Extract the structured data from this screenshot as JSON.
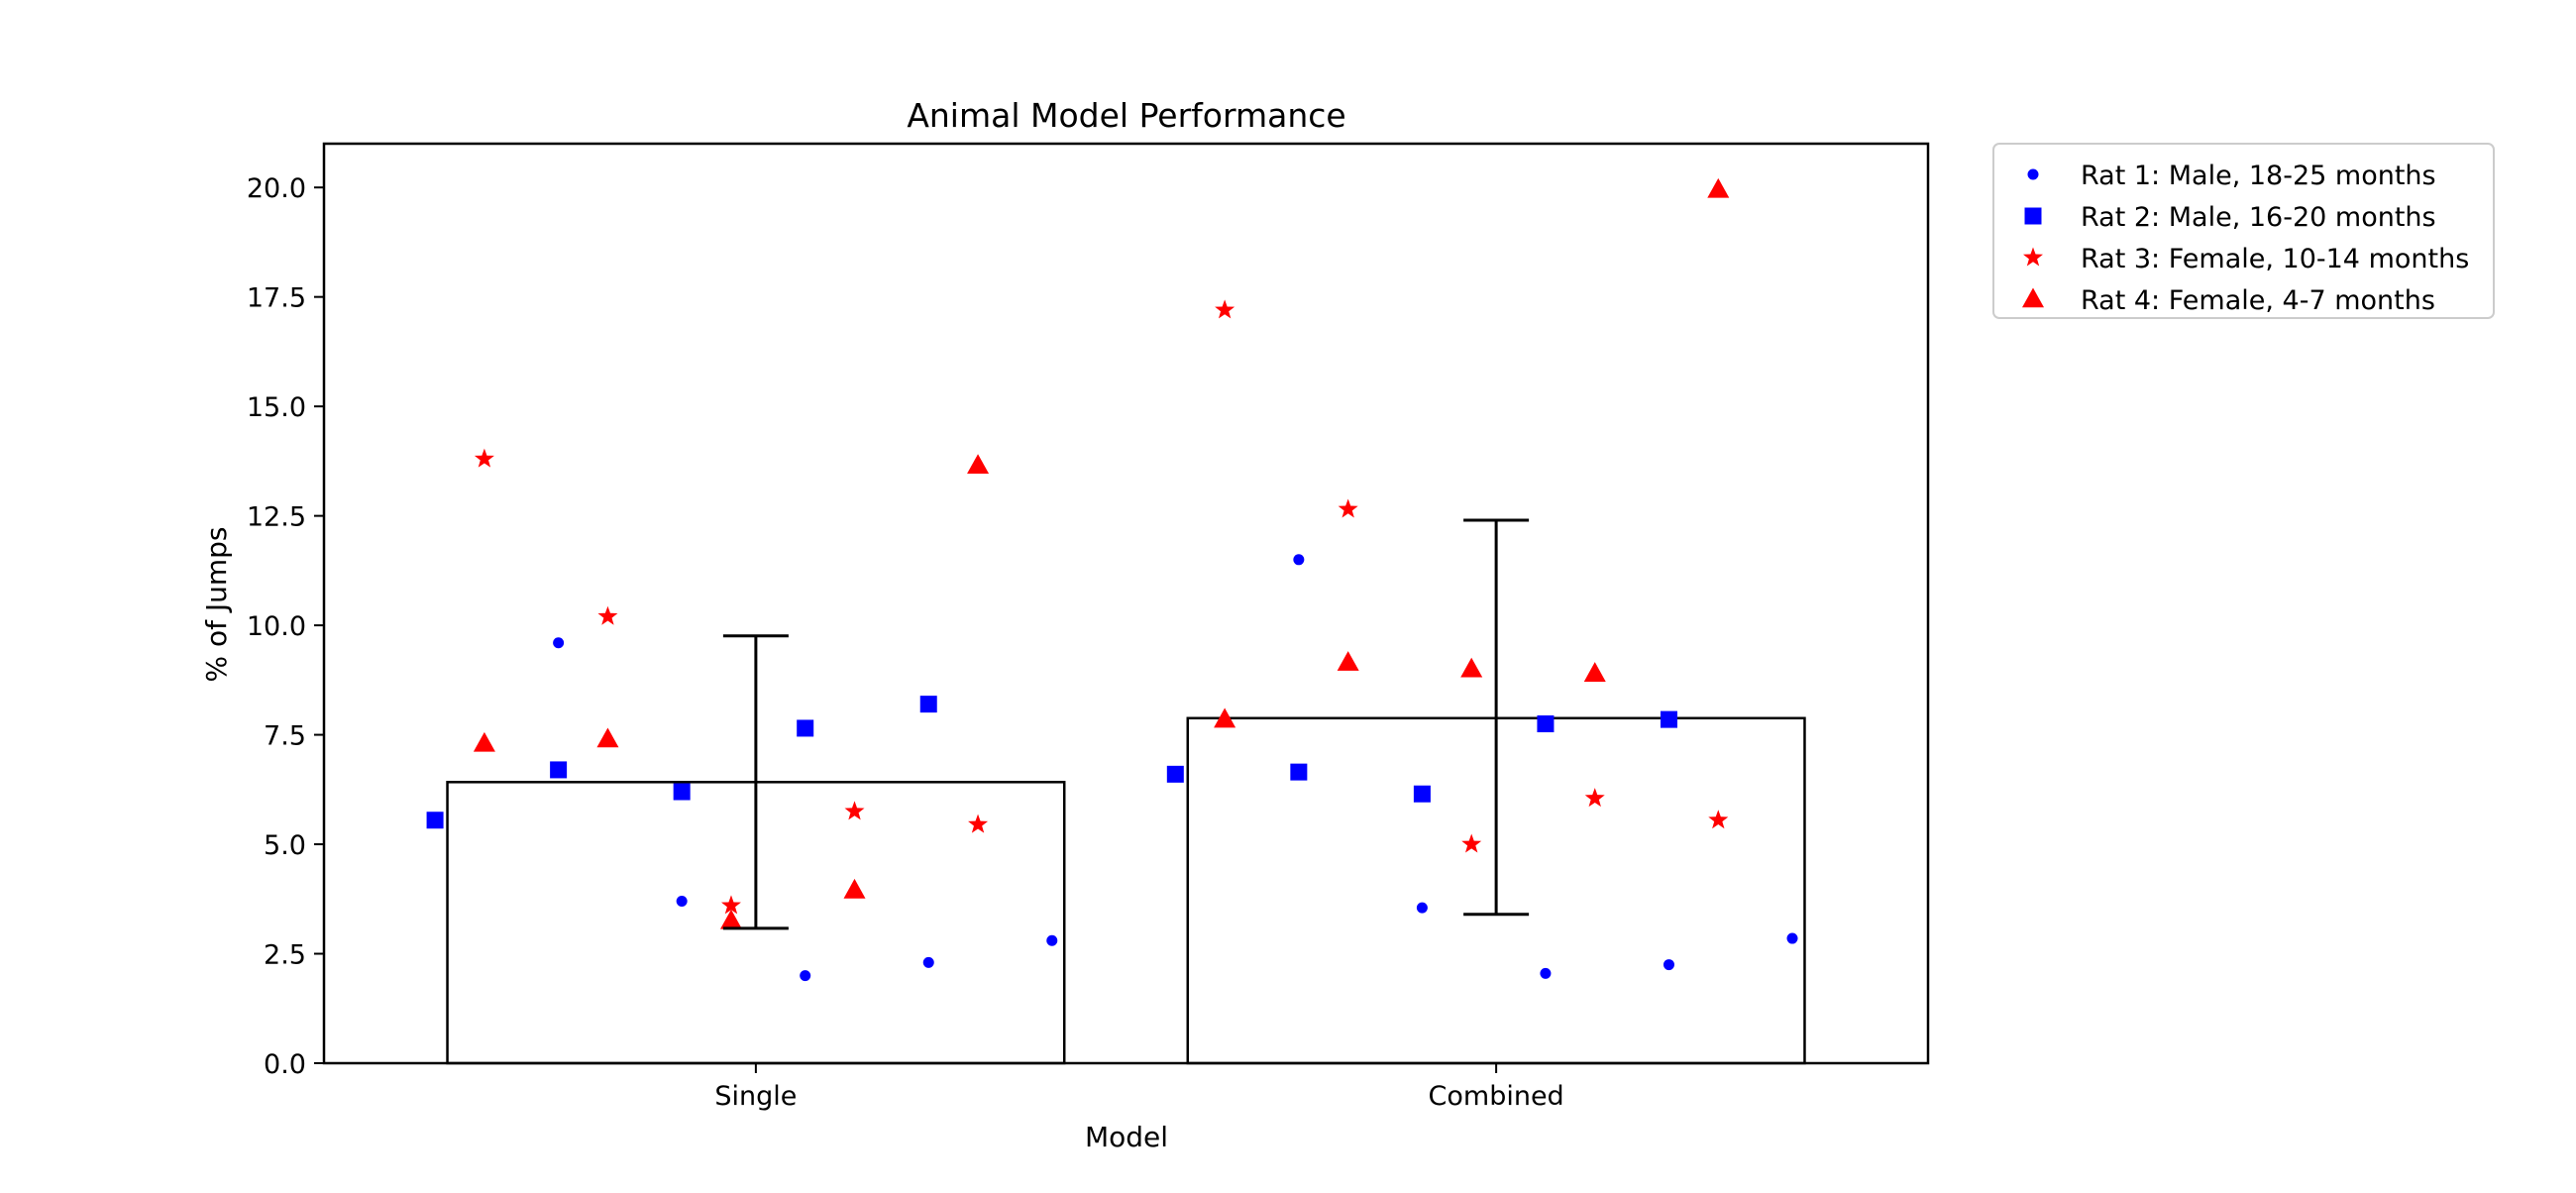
{
  "chart_data": {
    "type": "bar",
    "title": "Animal Model Performance",
    "xlabel": "Model",
    "ylabel": "% of Jumps",
    "ylim": [
      0,
      21
    ],
    "categories": [
      "Single",
      "Combined"
    ],
    "yticks": [
      "0.0",
      "2.5",
      "5.0",
      "7.5",
      "10.0",
      "12.5",
      "15.0",
      "17.5",
      "20.0"
    ],
    "bars": [
      {
        "category": "Single",
        "value": 6.42,
        "err_low": 3.08,
        "err_high": 9.76
      },
      {
        "category": "Combined",
        "value": 7.88,
        "err_low": 3.4,
        "err_high": 12.4
      }
    ],
    "legend_position": "outside-upper-right",
    "grid": false,
    "series": [
      {
        "name": "Rat 1: Male, 18-25 months",
        "marker": "circle",
        "color": "#0000ff",
        "points": [
          {
            "x": 0.2,
            "y": 9.6
          },
          {
            "x": 0.7,
            "y": 3.7
          },
          {
            "x": 1.2,
            "y": 2.0
          },
          {
            "x": 1.7,
            "y": 2.3
          },
          {
            "x": 2.2,
            "y": 2.8
          },
          {
            "x": 3.2,
            "y": 11.5
          },
          {
            "x": 3.7,
            "y": 3.55
          },
          {
            "x": 4.2,
            "y": 2.05
          },
          {
            "x": 4.7,
            "y": 2.25
          },
          {
            "x": 5.2,
            "y": 2.85
          }
        ]
      },
      {
        "name": "Rat 2: Male, 16-20 months",
        "marker": "square",
        "color": "#0000ff",
        "points": [
          {
            "x": -0.3,
            "y": 5.55
          },
          {
            "x": 0.2,
            "y": 6.7
          },
          {
            "x": 0.7,
            "y": 6.2
          },
          {
            "x": 1.2,
            "y": 7.65
          },
          {
            "x": 1.7,
            "y": 8.2
          },
          {
            "x": 2.7,
            "y": 6.6
          },
          {
            "x": 3.2,
            "y": 6.65
          },
          {
            "x": 3.7,
            "y": 6.15
          },
          {
            "x": 4.2,
            "y": 7.75
          },
          {
            "x": 4.7,
            "y": 7.85
          }
        ]
      },
      {
        "name": "Rat 3: Female, 10-14 months",
        "marker": "star",
        "color": "#ff0000",
        "points": [
          {
            "x": -0.1,
            "y": 13.8
          },
          {
            "x": 0.4,
            "y": 10.2
          },
          {
            "x": 0.9,
            "y": 3.6
          },
          {
            "x": 1.4,
            "y": 5.75
          },
          {
            "x": 1.9,
            "y": 5.45
          },
          {
            "x": 2.9,
            "y": 17.2
          },
          {
            "x": 3.4,
            "y": 12.65
          },
          {
            "x": 3.9,
            "y": 5.0
          },
          {
            "x": 4.4,
            "y": 6.05
          },
          {
            "x": 4.9,
            "y": 5.55
          }
        ]
      },
      {
        "name": "Rat 4: Female, 4-7 months",
        "marker": "triangle",
        "color": "#ff0000",
        "points": [
          {
            "x": -0.1,
            "y": 7.3
          },
          {
            "x": 0.4,
            "y": 7.4
          },
          {
            "x": 0.9,
            "y": 3.25
          },
          {
            "x": 1.4,
            "y": 3.95
          },
          {
            "x": 1.9,
            "y": 13.65
          },
          {
            "x": 2.9,
            "y": 7.85
          },
          {
            "x": 3.4,
            "y": 9.15
          },
          {
            "x": 3.9,
            "y": 9.0
          },
          {
            "x": 4.4,
            "y": 8.9
          },
          {
            "x": 4.9,
            "y": 19.95
          }
        ]
      }
    ]
  }
}
